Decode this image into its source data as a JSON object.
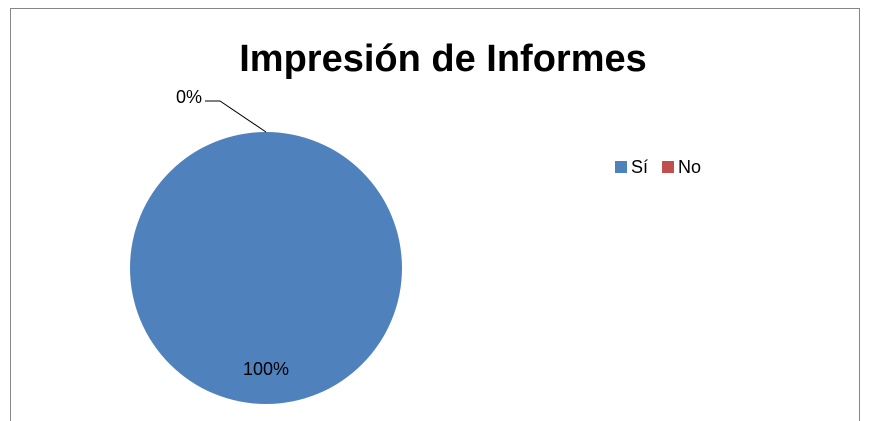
{
  "chart_data": {
    "type": "pie",
    "title": "Impresión de Informes",
    "categories": [
      "Sí",
      "No"
    ],
    "values": [
      100,
      0
    ],
    "value_labels": [
      "100%",
      "0%"
    ],
    "colors": [
      "#4f81bd",
      "#c0504d"
    ],
    "legend": "right"
  }
}
